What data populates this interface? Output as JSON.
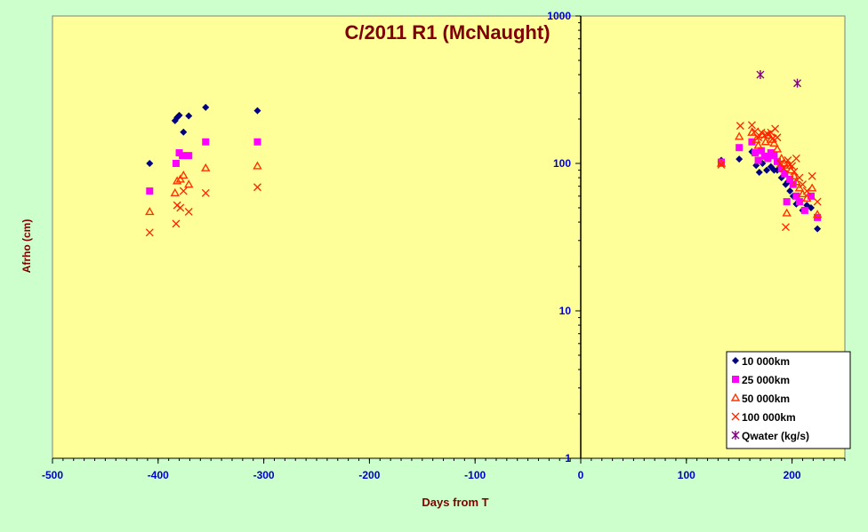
{
  "chart_data": {
    "type": "scatter",
    "title": "C/2011 R1 (McNaught)",
    "xlabel": "Days from  T",
    "ylabel": "Afrho (cm)",
    "xlim": [
      -500,
      250
    ],
    "ylim": [
      1,
      1000
    ],
    "y_scale": "log",
    "x_ticks": [
      -500,
      -400,
      -300,
      -200,
      -100,
      0,
      100,
      200
    ],
    "x_tick_labels": [
      "-500",
      "-400",
      "-300",
      "-200",
      "-100",
      "0",
      "100",
      "200"
    ],
    "y_ticks": [
      1,
      10,
      100,
      1000
    ],
    "y_tick_labels": [
      "1",
      "10",
      "100",
      "1000"
    ],
    "grid": false,
    "legend_position": "bottom-right",
    "colors": {
      "background": "#ccffcc",
      "plot_area": "#ffff99",
      "title": "#800000",
      "axis_label": "#800000",
      "tick_label": "#0000cc"
    },
    "series": [
      {
        "name": "10 000km",
        "marker": "diamond",
        "color": "#000080",
        "points": [
          [
            -408,
            100
          ],
          [
            -384,
            195
          ],
          [
            -382,
            205
          ],
          [
            -380,
            212
          ],
          [
            -376,
            163
          ],
          [
            -371,
            210
          ],
          [
            -355,
            240
          ],
          [
            -306,
            228
          ],
          [
            133,
            105
          ],
          [
            150,
            107
          ],
          [
            162,
            120
          ],
          [
            166,
            97
          ],
          [
            169,
            87
          ],
          [
            172,
            100
          ],
          [
            176,
            90
          ],
          [
            180,
            95
          ],
          [
            183,
            90
          ],
          [
            186,
            90
          ],
          [
            190,
            80
          ],
          [
            194,
            72
          ],
          [
            196,
            75
          ],
          [
            198,
            65
          ],
          [
            201,
            60
          ],
          [
            204,
            53
          ],
          [
            206,
            55
          ],
          [
            210,
            48
          ],
          [
            214,
            52
          ],
          [
            218,
            50
          ],
          [
            224,
            36
          ]
        ]
      },
      {
        "name": "25 000km",
        "marker": "square",
        "color": "#ff00ff",
        "points": [
          [
            -408,
            65
          ],
          [
            -383,
            100
          ],
          [
            -380,
            118
          ],
          [
            -377,
            113
          ],
          [
            -371,
            113
          ],
          [
            -355,
            140
          ],
          [
            -306,
            140
          ],
          [
            133,
            102
          ],
          [
            150,
            128
          ],
          [
            162,
            140
          ],
          [
            165,
            118
          ],
          [
            168,
            105
          ],
          [
            171,
            122
          ],
          [
            174,
            112
          ],
          [
            177,
            108
          ],
          [
            180,
            118
          ],
          [
            183,
            113
          ],
          [
            186,
            103
          ],
          [
            190,
            92
          ],
          [
            193,
            85
          ],
          [
            195,
            55
          ],
          [
            198,
            78
          ],
          [
            201,
            72
          ],
          [
            204,
            60
          ],
          [
            207,
            55
          ],
          [
            212,
            48
          ],
          [
            218,
            60
          ],
          [
            224,
            43
          ]
        ]
      },
      {
        "name": "50 000km",
        "marker": "triangle",
        "color": "#ff3300",
        "points": [
          [
            -408,
            47
          ],
          [
            -384,
            63
          ],
          [
            -382,
            76
          ],
          [
            -379,
            78
          ],
          [
            -376,
            83
          ],
          [
            -371,
            72
          ],
          [
            -355,
            93
          ],
          [
            -306,
            96
          ],
          [
            133,
            100
          ],
          [
            150,
            152
          ],
          [
            162,
            162
          ],
          [
            166,
            145
          ],
          [
            168,
            132
          ],
          [
            172,
            157
          ],
          [
            175,
            140
          ],
          [
            178,
            155
          ],
          [
            180,
            145
          ],
          [
            183,
            137
          ],
          [
            186,
            125
          ],
          [
            190,
            108
          ],
          [
            193,
            100
          ],
          [
            195,
            46
          ],
          [
            196,
            97
          ],
          [
            199,
            90
          ],
          [
            202,
            82
          ],
          [
            204,
            75
          ],
          [
            207,
            68
          ],
          [
            210,
            62
          ],
          [
            214,
            58
          ],
          [
            219,
            68
          ],
          [
            224,
            45
          ]
        ]
      },
      {
        "name": "100 000km",
        "marker": "x",
        "color": "#ff2200",
        "points": [
          [
            -408,
            34
          ],
          [
            -383,
            39
          ],
          [
            -382,
            52
          ],
          [
            -379,
            50
          ],
          [
            -376,
            65
          ],
          [
            -371,
            47
          ],
          [
            -355,
            63
          ],
          [
            -306,
            69
          ],
          [
            133,
            98
          ],
          [
            151,
            180
          ],
          [
            162,
            182
          ],
          [
            165,
            165
          ],
          [
            168,
            150
          ],
          [
            171,
            162
          ],
          [
            174,
            155
          ],
          [
            177,
            158
          ],
          [
            180,
            162
          ],
          [
            182,
            148
          ],
          [
            184,
            172
          ],
          [
            186,
            150
          ],
          [
            189,
            100
          ],
          [
            192,
            93
          ],
          [
            194,
            37
          ],
          [
            196,
            105
          ],
          [
            198,
            98
          ],
          [
            200,
            96
          ],
          [
            202,
            88
          ],
          [
            204,
            108
          ],
          [
            207,
            80
          ],
          [
            210,
            72
          ],
          [
            214,
            65
          ],
          [
            219,
            82
          ],
          [
            224,
            55
          ]
        ]
      },
      {
        "name": "Qwater (kg/s)",
        "marker": "star",
        "color": "#800080",
        "points": [
          [
            170,
            400
          ],
          [
            205,
            350
          ]
        ]
      }
    ]
  }
}
